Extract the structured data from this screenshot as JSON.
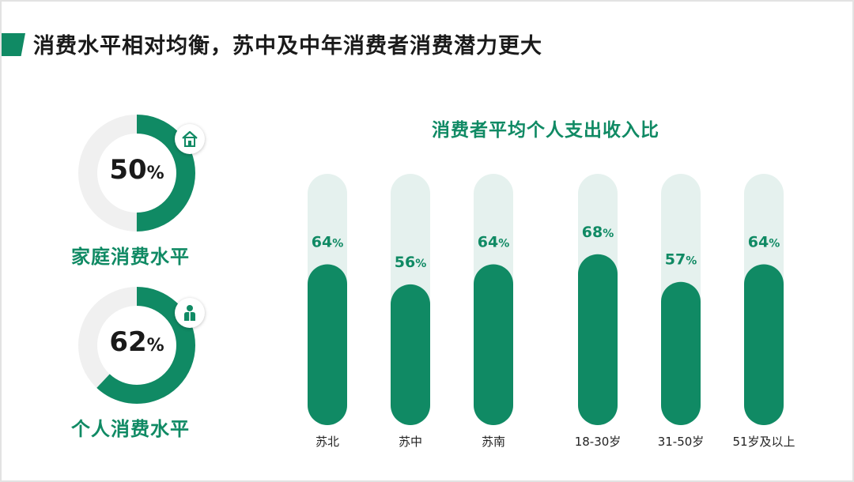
{
  "slide": {
    "title": "消费水平相对均衡，苏中及中年消费者消费潜力更大"
  },
  "rings": [
    {
      "value": 50,
      "value_text": "50",
      "unit": "%",
      "label": "家庭消费水平",
      "icon": "house-icon"
    },
    {
      "value": 62,
      "value_text": "62",
      "unit": "%",
      "label": "个人消费水平",
      "icon": "person-icon"
    }
  ],
  "colors": {
    "accent": "#108a64",
    "track": "#e5f1ee",
    "ring_track": "#f0f0f0"
  },
  "chart_data": {
    "type": "bar",
    "title": "消费者平均个人支出收入比",
    "categories": [
      "苏北",
      "苏中",
      "苏南",
      "18-30岁",
      "31-50岁",
      "51岁及以上"
    ],
    "values": [
      64,
      56,
      64,
      68,
      57,
      64
    ],
    "value_labels": [
      "64",
      "56",
      "64",
      "68",
      "57",
      "64"
    ],
    "unit": "%",
    "ylim": [
      0,
      100
    ],
    "grid": false
  }
}
